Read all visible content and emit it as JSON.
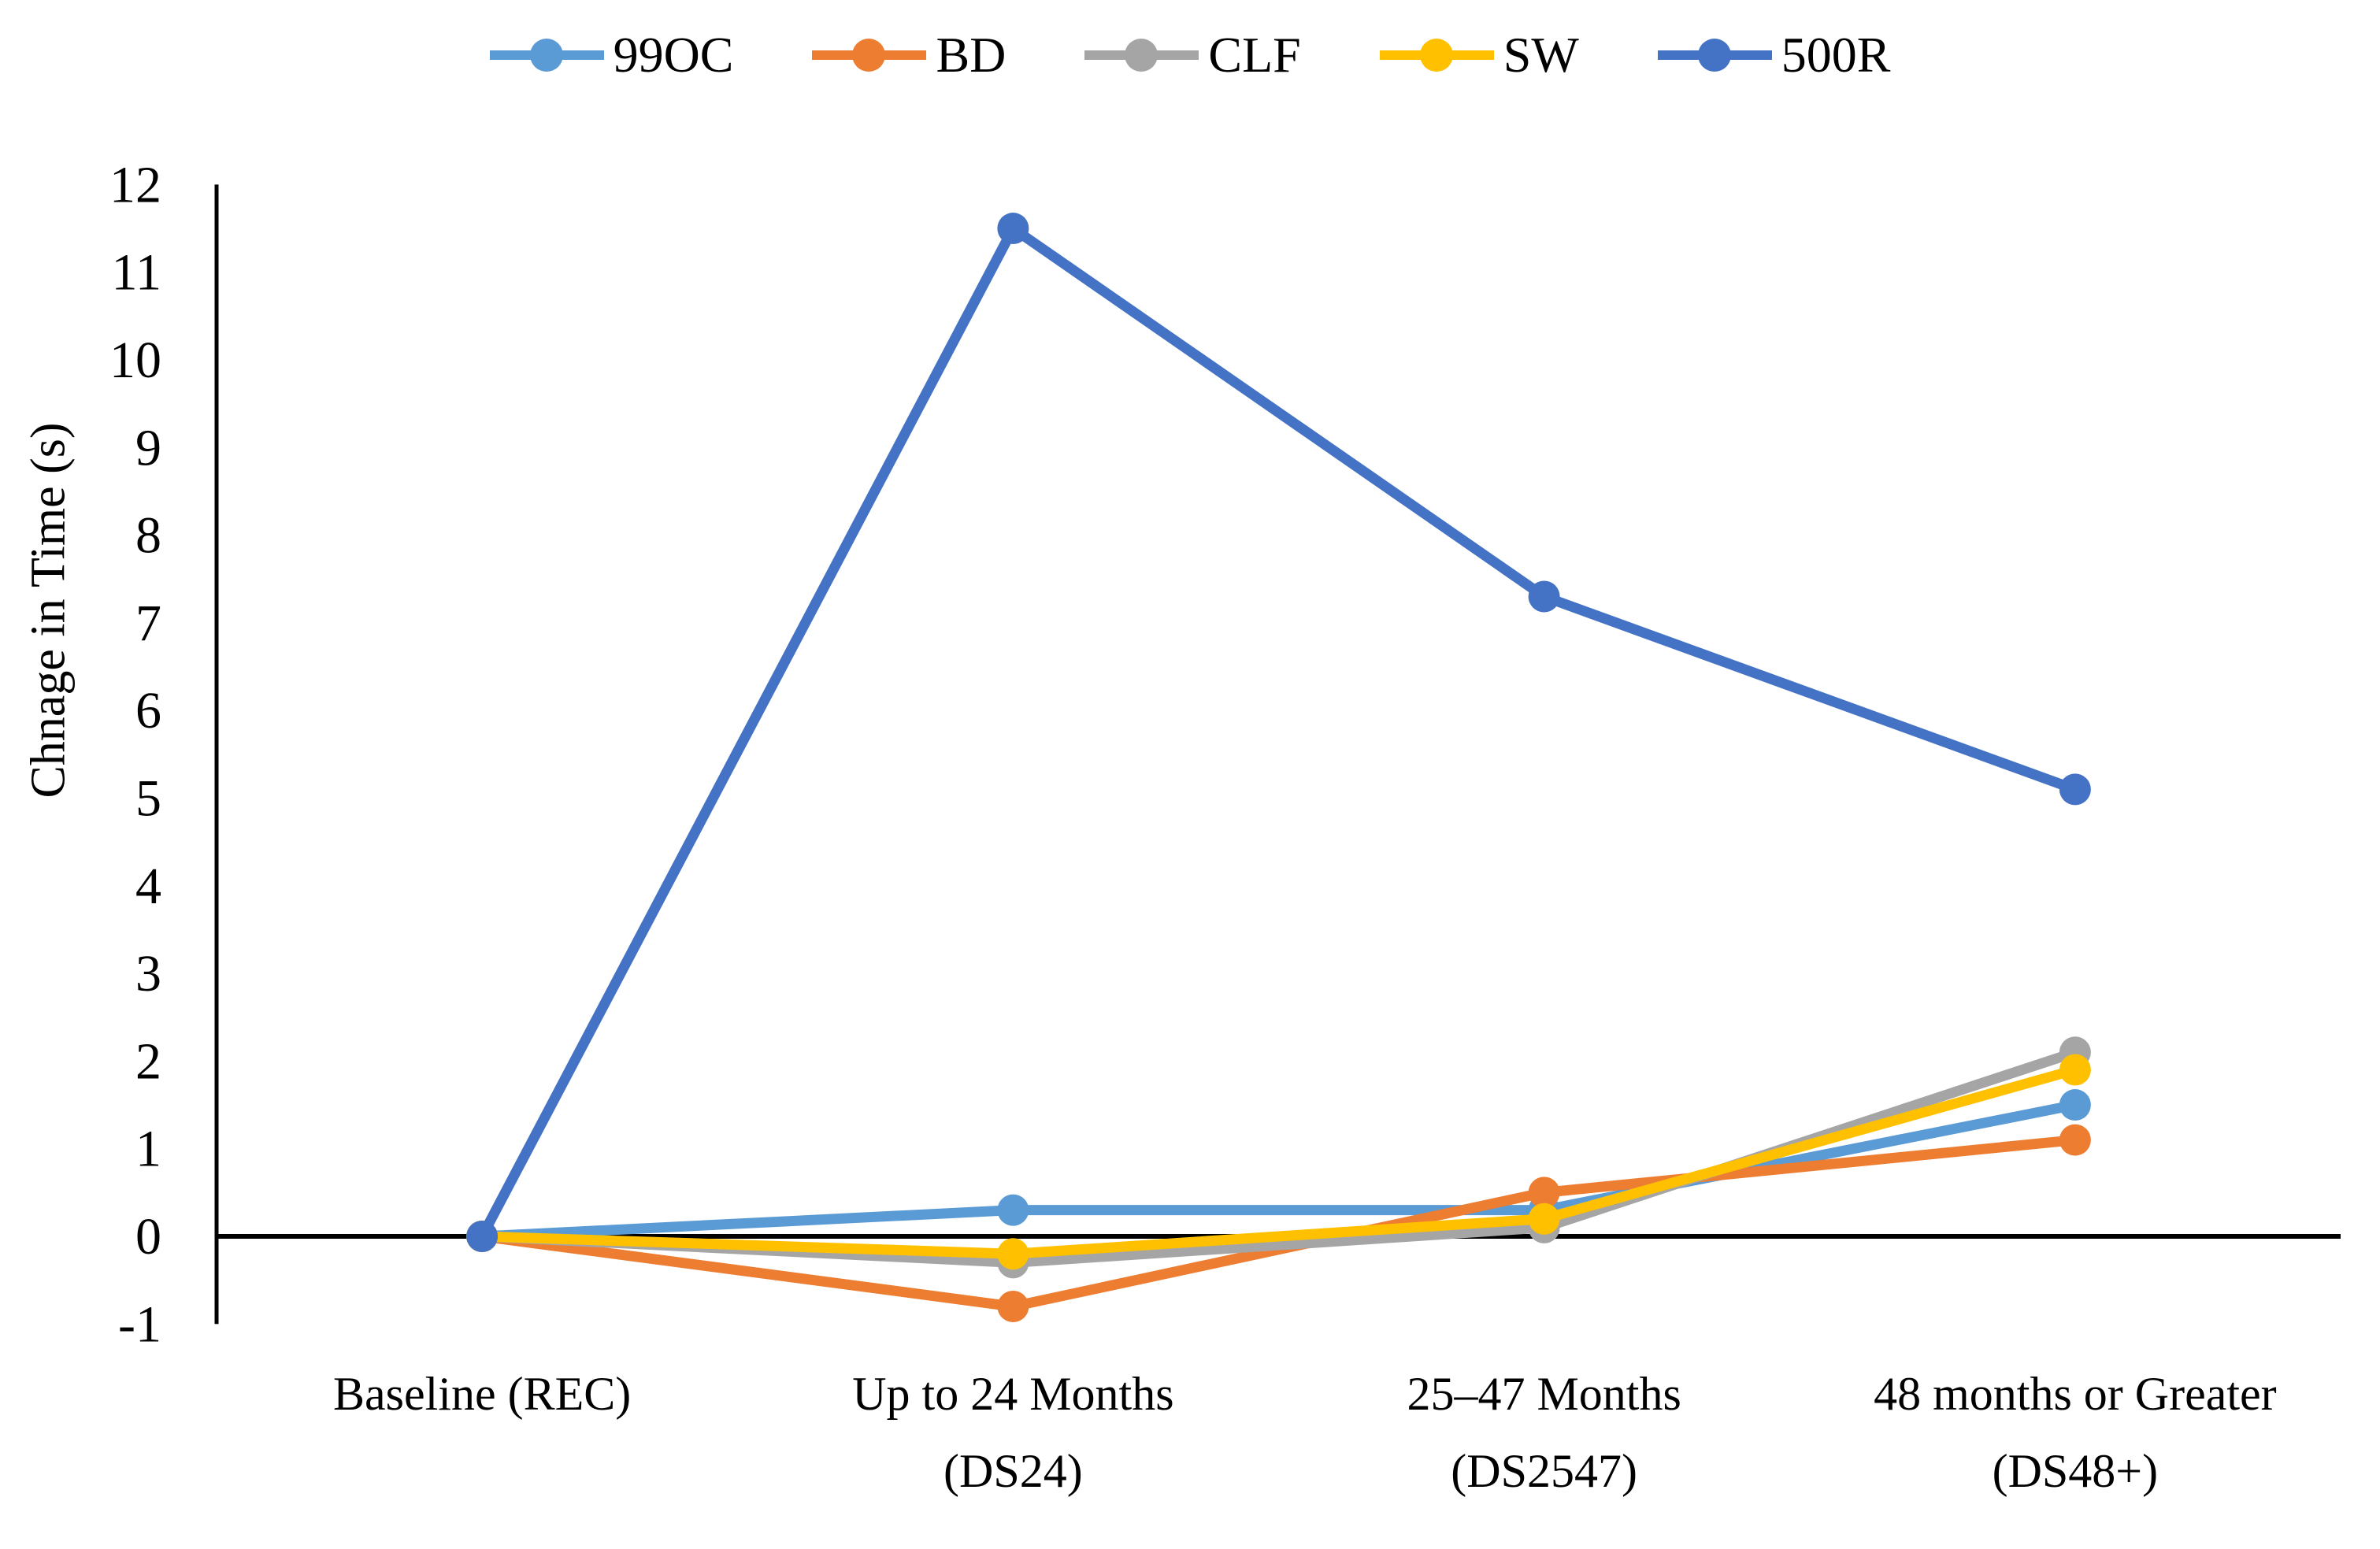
{
  "chart_data": {
    "type": "line",
    "title": "",
    "xlabel": "",
    "ylabel": "Chnage in Time (s)",
    "categories": [
      "Baseline (REC)",
      "Up to 24 Months (DS24)",
      "25–47 Months (DS2547)",
      "48 months or Greater (DS48+)"
    ],
    "category_label_lines": [
      [
        "Baseline (REC)"
      ],
      [
        "Up to 24 Months",
        "(DS24)"
      ],
      [
        "25–47 Months",
        "(DS2547)"
      ],
      [
        "48 months or Greater",
        "(DS48+)"
      ]
    ],
    "series": [
      {
        "name": "99OC",
        "color": "#5B9BD5",
        "values": [
          0,
          0.3,
          0.3,
          1.5
        ]
      },
      {
        "name": "BD",
        "color": "#ED7D31",
        "values": [
          0,
          -0.8,
          0.5,
          1.1
        ]
      },
      {
        "name": "CLF",
        "color": "#A5A5A5",
        "values": [
          0,
          -0.3,
          0.1,
          2.1
        ]
      },
      {
        "name": "SW",
        "color": "#FFC000",
        "values": [
          0,
          -0.2,
          0.2,
          1.9
        ]
      },
      {
        "name": "500R",
        "color": "#4472C4",
        "values": [
          0,
          11.5,
          7.3,
          5.1
        ]
      }
    ],
    "ylim": [
      -1,
      12
    ],
    "yticks": [
      12,
      11,
      10,
      9,
      8,
      7,
      6,
      5,
      4,
      3,
      2,
      1,
      0,
      -1
    ],
    "grid": false,
    "legend_position": "top",
    "axis_color": "#000000",
    "marker": "circle"
  }
}
